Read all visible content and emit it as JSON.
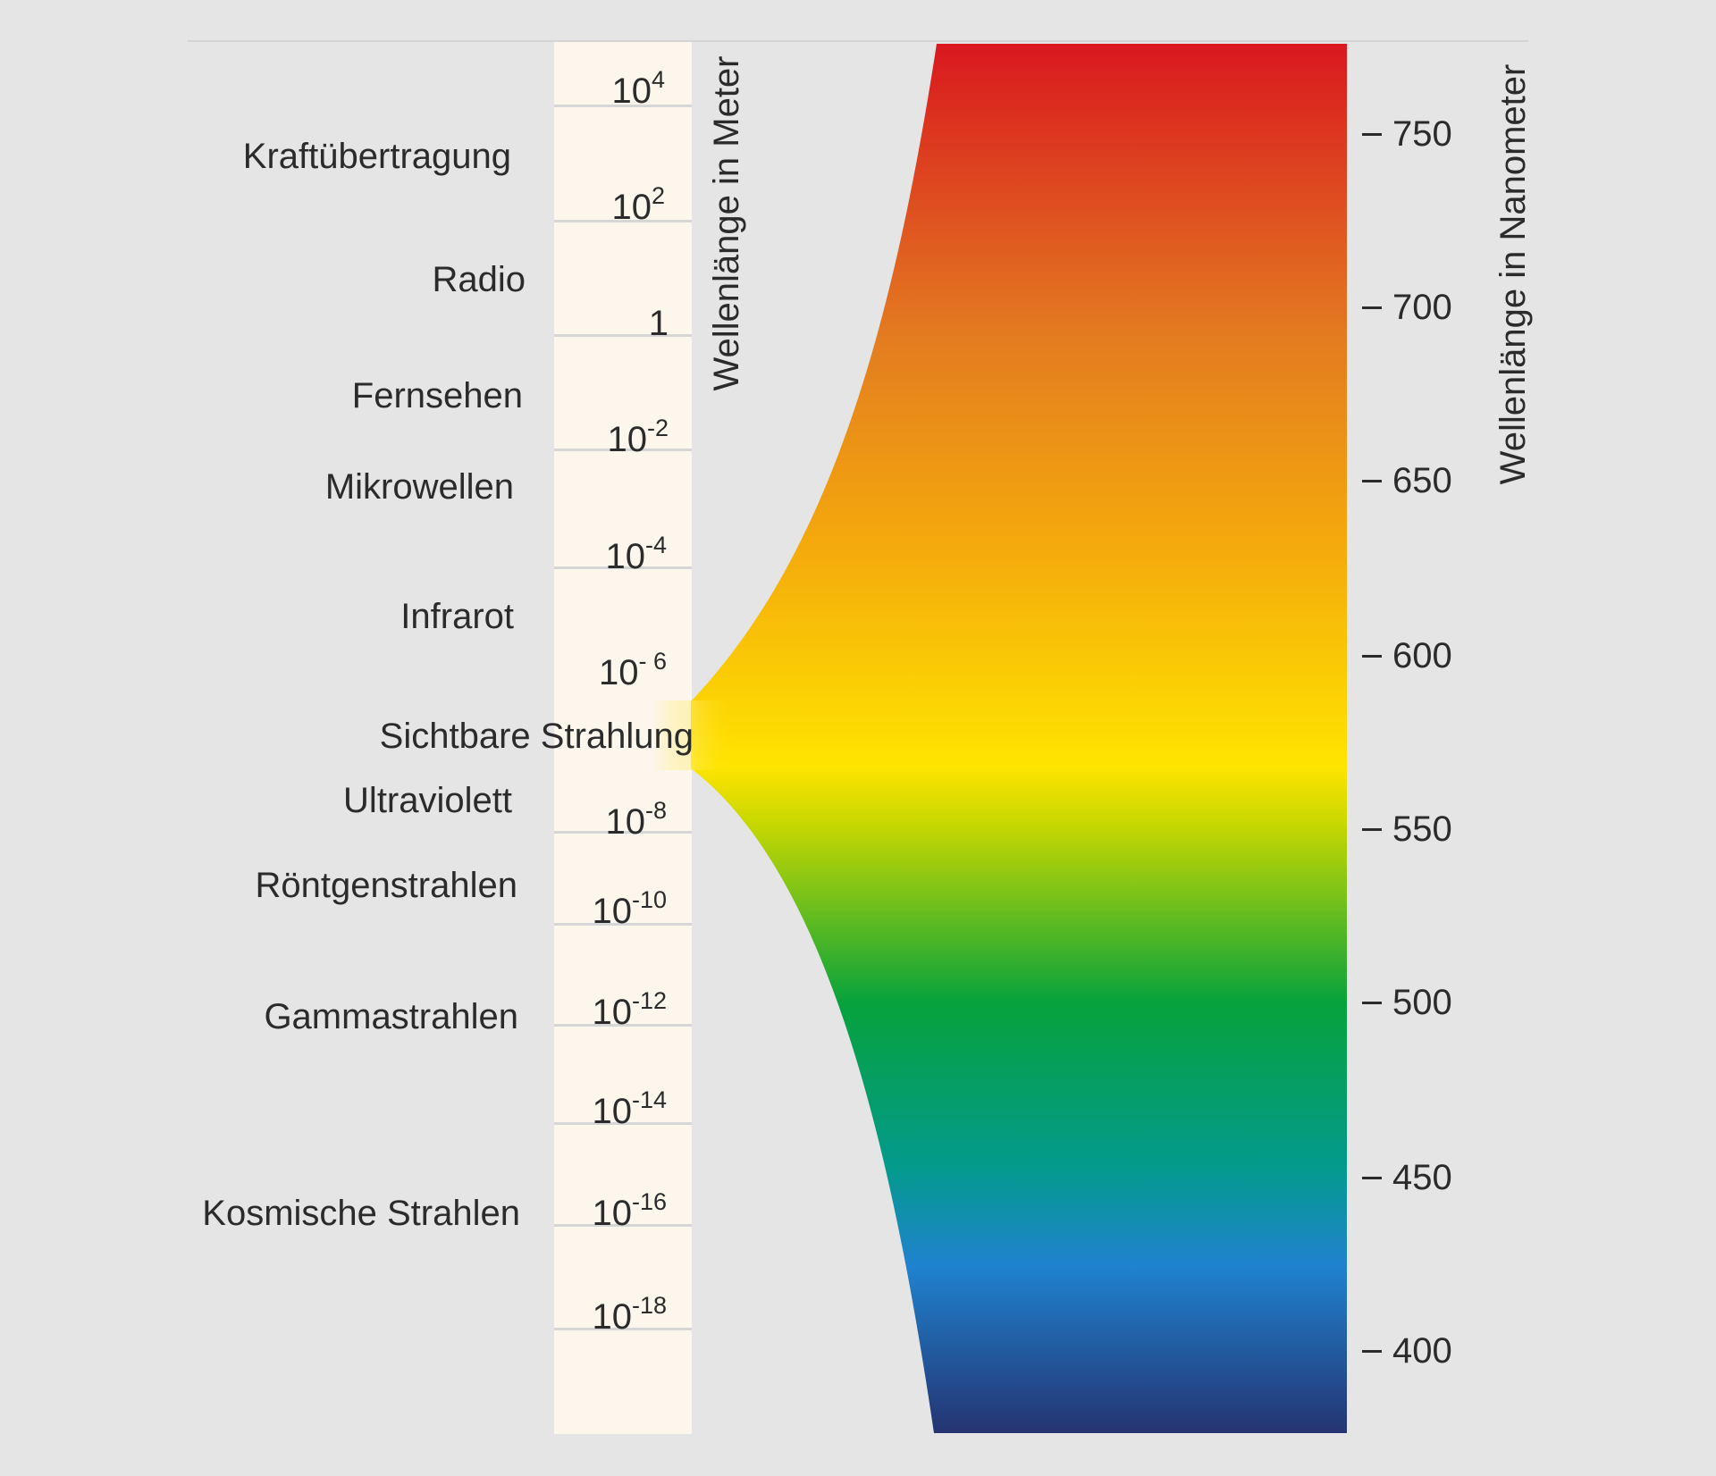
{
  "left_axis_title": "Wellenlänge in Meter",
  "right_axis_title": "Wellenlänge in Nanometer",
  "bands": [
    {
      "id": "kraft",
      "label": "Kraftübertragung"
    },
    {
      "id": "radio",
      "label": "Radio"
    },
    {
      "id": "fernsehen",
      "label": "Fernsehen"
    },
    {
      "id": "mikrowellen",
      "label": "Mikrowellen"
    },
    {
      "id": "infrarot",
      "label": "Infrarot"
    },
    {
      "id": "sichtbar",
      "label": "Sichtbare Strahlung"
    },
    {
      "id": "uv",
      "label": "Ultraviolett"
    },
    {
      "id": "roentgen",
      "label": "Röntgenstrahlen"
    },
    {
      "id": "gamma",
      "label": "Gammastrahlen"
    },
    {
      "id": "kosmisch",
      "label": "Kosmische Strahlen"
    }
  ],
  "wavelength_scale": [
    {
      "base": "10",
      "exp": "4"
    },
    {
      "base": "10",
      "exp": "2"
    },
    {
      "base": "1",
      "exp": ""
    },
    {
      "base": "10",
      "exp": "-2"
    },
    {
      "base": "10",
      "exp": "-4"
    },
    {
      "base": "10",
      "exp": "- 6"
    },
    {
      "base": "10",
      "exp": "-8"
    },
    {
      "base": "10",
      "exp": "-10"
    },
    {
      "base": "10",
      "exp": "-12"
    },
    {
      "base": "10",
      "exp": "-14"
    },
    {
      "base": "10",
      "exp": "-16"
    },
    {
      "base": "10",
      "exp": "-18"
    }
  ],
  "nanometer_ticks": [
    "750",
    "700",
    "650",
    "600",
    "550",
    "500",
    "450",
    "400"
  ],
  "spectrum_colors": {
    "red": "#d9181f",
    "orange": "#e37b20",
    "amber": "#f4a90c",
    "yellow": "#ffe400",
    "lime": "#c9d800",
    "green": "#07a23c",
    "teal": "#049a8e",
    "blue": "#1f82cf",
    "indigo": "#253471"
  }
}
